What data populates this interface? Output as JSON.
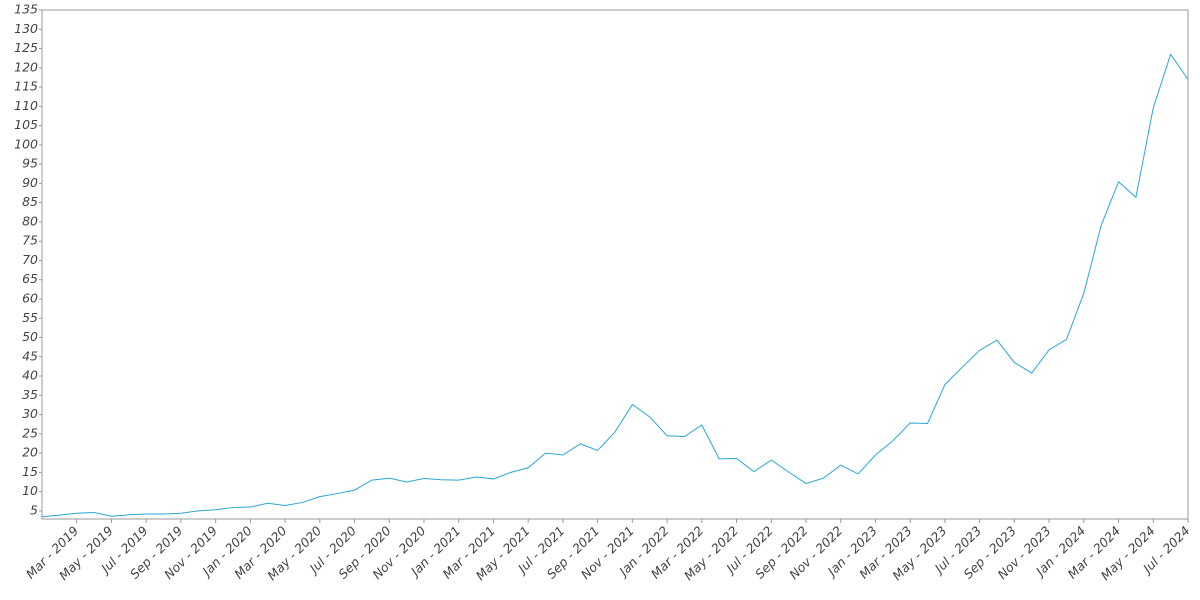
{
  "chart_data": {
    "type": "line",
    "x": [
      "2019-01",
      "2019-02",
      "2019-03",
      "2019-04",
      "2019-05",
      "2019-06",
      "2019-07",
      "2019-08",
      "2019-09",
      "2019-10",
      "2019-11",
      "2019-12",
      "2020-01",
      "2020-02",
      "2020-03",
      "2020-04",
      "2020-05",
      "2020-06",
      "2020-07",
      "2020-08",
      "2020-09",
      "2020-10",
      "2020-11",
      "2020-12",
      "2021-01",
      "2021-02",
      "2021-03",
      "2021-04",
      "2021-05",
      "2021-06",
      "2021-07",
      "2021-08",
      "2021-09",
      "2021-10",
      "2021-11",
      "2021-12",
      "2022-01",
      "2022-02",
      "2022-03",
      "2022-04",
      "2022-05",
      "2022-06",
      "2022-07",
      "2022-08",
      "2022-09",
      "2022-10",
      "2022-11",
      "2022-12",
      "2023-01",
      "2023-02",
      "2023-03",
      "2023-04",
      "2023-05",
      "2023-06",
      "2023-07",
      "2023-08",
      "2023-09",
      "2023-10",
      "2023-11",
      "2023-12",
      "2024-01",
      "2024-02",
      "2024-03",
      "2024-04",
      "2024-05",
      "2024-06",
      "2024-07"
    ],
    "series": [
      {
        "color": "#2aa7d4",
        "values": [
          3.5,
          3.9,
          4.4,
          4.6,
          3.6,
          4.0,
          4.2,
          4.2,
          4.4,
          5.0,
          5.3,
          5.9,
          6.0,
          7.0,
          6.4,
          7.2,
          8.7,
          9.5,
          10.4,
          13.0,
          13.5,
          12.5,
          13.4,
          13.1,
          13.0,
          13.8,
          13.3,
          15.0,
          16.2,
          20.0,
          19.5,
          22.4,
          20.7,
          25.5,
          32.6,
          29.4,
          24.5,
          24.3,
          27.3,
          18.5,
          18.6,
          15.2,
          18.2,
          15.1,
          12.1,
          13.5,
          16.9,
          14.6,
          19.5,
          23.2,
          27.8,
          27.7,
          37.8,
          42.3,
          46.7,
          49.3,
          43.5,
          40.8,
          46.8,
          49.5,
          61.5,
          79.1,
          90.4,
          86.4,
          109.6,
          123.5,
          117.0
        ]
      }
    ],
    "xlim": [
      "2019-01",
      "2024-07"
    ],
    "xticks": [
      {
        "value": "2019-03",
        "label": "Mar - 2019"
      },
      {
        "value": "2019-05",
        "label": "May - 2019"
      },
      {
        "value": "2019-07",
        "label": "Jul - 2019"
      },
      {
        "value": "2019-09",
        "label": "Sep - 2019"
      },
      {
        "value": "2019-11",
        "label": "Nov - 2019"
      },
      {
        "value": "2020-01",
        "label": "Jan - 2020"
      },
      {
        "value": "2020-03",
        "label": "Mar - 2020"
      },
      {
        "value": "2020-05",
        "label": "May - 2020"
      },
      {
        "value": "2020-07",
        "label": "Jul - 2020"
      },
      {
        "value": "2020-09",
        "label": "Sep - 2020"
      },
      {
        "value": "2020-11",
        "label": "Nov - 2020"
      },
      {
        "value": "2021-01",
        "label": "Jan - 2021"
      },
      {
        "value": "2021-03",
        "label": "Mar - 2021"
      },
      {
        "value": "2021-05",
        "label": "May - 2021"
      },
      {
        "value": "2021-07",
        "label": "Jul - 2021"
      },
      {
        "value": "2021-09",
        "label": "Sep - 2021"
      },
      {
        "value": "2021-11",
        "label": "Nov - 2021"
      },
      {
        "value": "2022-01",
        "label": "Jan - 2022"
      },
      {
        "value": "2022-03",
        "label": "Mar - 2022"
      },
      {
        "value": "2022-05",
        "label": "May - 2022"
      },
      {
        "value": "2022-07",
        "label": "Jul - 2022"
      },
      {
        "value": "2022-09",
        "label": "Sep - 2022"
      },
      {
        "value": "2022-11",
        "label": "Nov - 2022"
      },
      {
        "value": "2023-01",
        "label": "Jan - 2023"
      },
      {
        "value": "2023-03",
        "label": "Mar - 2023"
      },
      {
        "value": "2023-05",
        "label": "May - 2023"
      },
      {
        "value": "2023-07",
        "label": "Jul - 2023"
      },
      {
        "value": "2023-09",
        "label": "Sep - 2023"
      },
      {
        "value": "2023-11",
        "label": "Nov - 2023"
      },
      {
        "value": "2024-01",
        "label": "Jan - 2024"
      },
      {
        "value": "2024-03",
        "label": "Mar - 2024"
      },
      {
        "value": "2024-05",
        "label": "May - 2024"
      },
      {
        "value": "2024-07",
        "label": "Jul - 2024"
      }
    ],
    "ylim": [
      2.9,
      135
    ],
    "yticks": [
      5,
      10,
      15,
      20,
      25,
      30,
      35,
      40,
      45,
      50,
      55,
      60,
      65,
      70,
      75,
      80,
      85,
      90,
      95,
      100,
      105,
      110,
      115,
      120,
      125,
      130,
      135
    ],
    "grid": false
  }
}
